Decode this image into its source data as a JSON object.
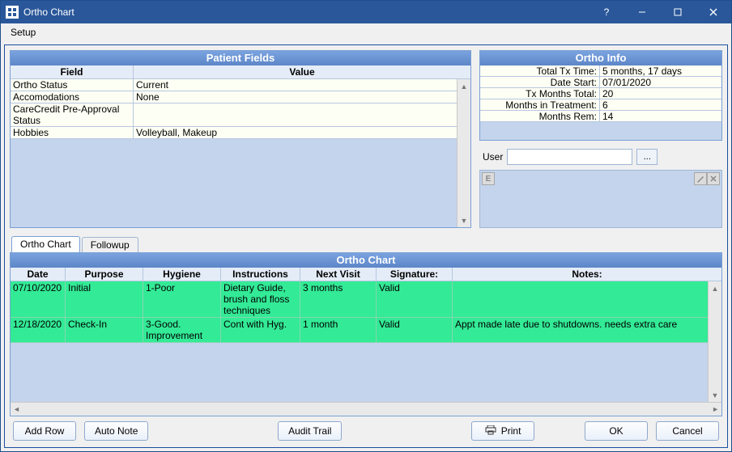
{
  "window": {
    "title": "Ortho Chart"
  },
  "menu": {
    "setup": "Setup"
  },
  "patient_fields": {
    "title": "Patient Fields",
    "col_field": "Field",
    "col_value": "Value",
    "rows": [
      {
        "field": "Ortho Status",
        "value": "Current"
      },
      {
        "field": "Accomodations",
        "value": "None"
      },
      {
        "field": "CareCredit Pre-Approval Status",
        "value": ""
      },
      {
        "field": "Hobbies",
        "value": "Volleyball, Makeup"
      }
    ]
  },
  "ortho_info": {
    "title": "Ortho Info",
    "rows": [
      {
        "label": "Total Tx Time:",
        "value": "5 months, 17 days"
      },
      {
        "label": "Date Start:",
        "value": "07/01/2020"
      },
      {
        "label": "Tx Months Total:",
        "value": "20"
      },
      {
        "label": "Months in Treatment:",
        "value": "6"
      },
      {
        "label": "Months Rem:",
        "value": "14"
      }
    ]
  },
  "user": {
    "label": "User",
    "value": "",
    "ellipsis": "..."
  },
  "sig": {
    "e": "E"
  },
  "tabs": {
    "ortho": "Ortho Chart",
    "followup": "Followup"
  },
  "chart": {
    "title": "Ortho Chart",
    "cols": {
      "date": "Date",
      "purpose": "Purpose",
      "hygiene": "Hygiene",
      "instructions": "Instructions",
      "next": "Next Visit",
      "sig": "Signature:",
      "notes": "Notes:"
    },
    "rows": [
      {
        "date": "07/10/2020",
        "purpose": "Initial",
        "hygiene": "1-Poor",
        "instructions": "Dietary Guide, brush and floss techniques",
        "next": "3 months",
        "sig": "Valid",
        "notes": ""
      },
      {
        "date": "12/18/2020",
        "purpose": "Check-In",
        "hygiene": "3-Good. Improvement",
        "instructions": "Cont with Hyg.",
        "next": "1 month",
        "sig": "Valid",
        "notes": "Appt made late due to shutdowns. needs extra care"
      }
    ],
    "row_bg": "#33ea96"
  },
  "buttons": {
    "add_row": "Add Row",
    "auto_note": "Auto Note",
    "audit_trail": "Audit Trail",
    "print": "Print",
    "ok": "OK",
    "cancel": "Cancel"
  }
}
